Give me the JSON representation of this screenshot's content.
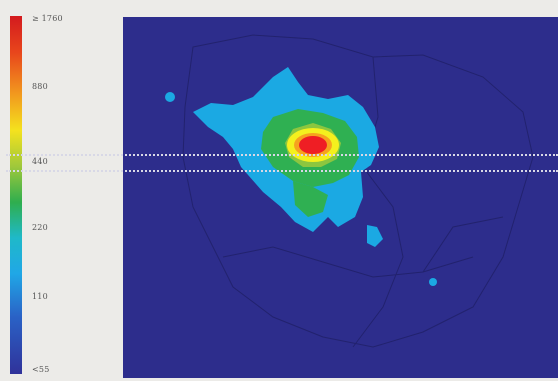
{
  "legend": {
    "labels": [
      "≥ 1760",
      "880",
      "440",
      "220",
      "110",
      "<55"
    ]
  },
  "colors": {
    "background_blue": "#2d2d8c",
    "level_red": "#ef1e24",
    "level_yellow": "#f4f01e",
    "level_green": "#2fb052",
    "level_cyan": "#1ba9e3"
  }
}
